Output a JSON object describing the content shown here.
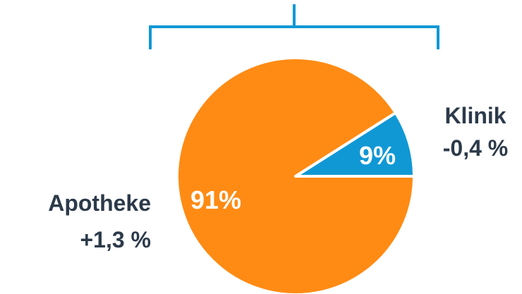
{
  "chart_data": {
    "type": "pie",
    "slices": [
      {
        "name": "Klinik",
        "value": 9,
        "value_label": "9%",
        "change": "-0,4 %",
        "color": "#1098d5"
      },
      {
        "name": "Apotheke",
        "value": 91,
        "value_label": "91%",
        "change": "+1,3 %",
        "color": "#ff8b14"
      }
    ],
    "bracket_color": "#1098d5",
    "text_color": "#2c3a4a",
    "slice_label_color": "#ffffff"
  }
}
